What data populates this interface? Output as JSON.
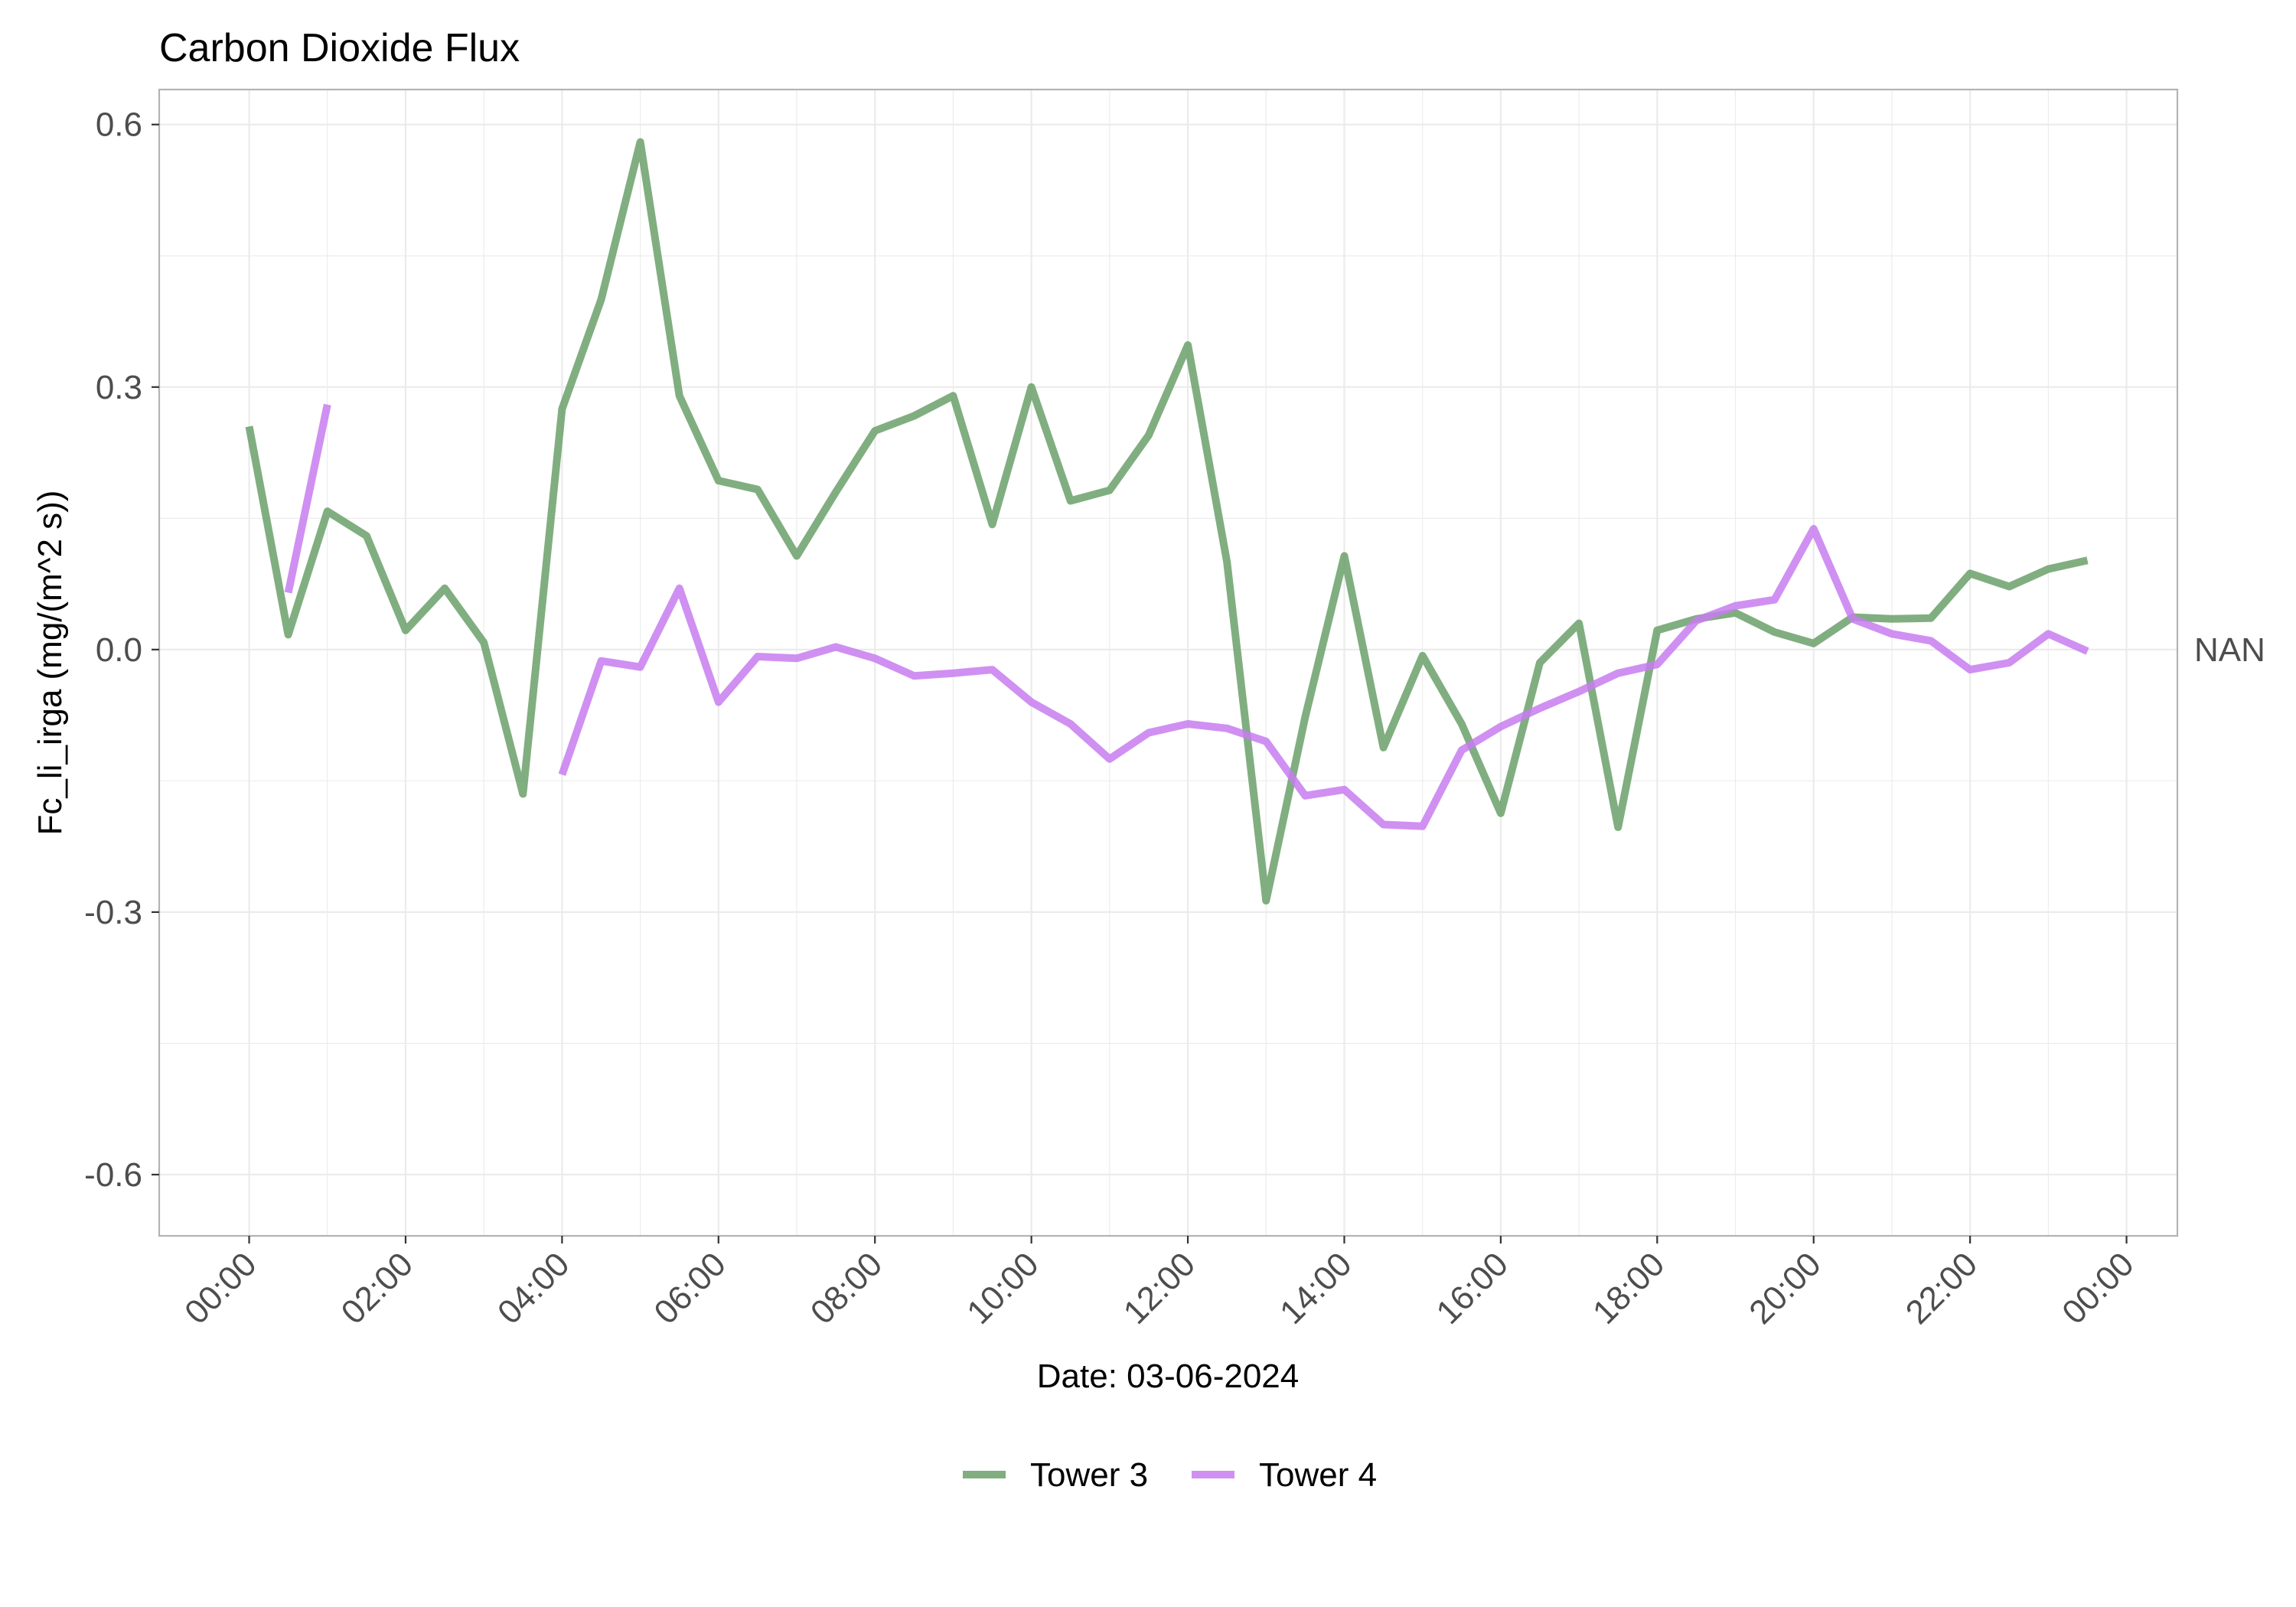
{
  "chart_data": {
    "type": "line",
    "title": "Carbon Dioxide Flux",
    "xlabel": "Date: 03-06-2024",
    "ylabel": "Fc_li_irga (mg/(m^2 s))",
    "x_tick_labels": [
      "00:00",
      "02:00",
      "04:00",
      "06:00",
      "08:00",
      "10:00",
      "12:00",
      "14:00",
      "16:00",
      "18:00",
      "20:00",
      "22:00",
      "00:00"
    ],
    "x_ticks_hours": [
      0,
      2,
      4,
      6,
      8,
      10,
      12,
      14,
      16,
      18,
      20,
      22,
      24
    ],
    "xlim": [
      -1.15,
      24.65
    ],
    "y_tick_labels": [
      "0.6",
      "0.3",
      "0.0",
      "-0.3",
      "-0.6"
    ],
    "y_ticks": [
      0.6,
      0.3,
      0.0,
      -0.3,
      -0.6
    ],
    "ylim": [
      -0.67,
      0.64
    ],
    "right_annotation": {
      "text": "NAN",
      "y": 0.0
    },
    "grid": true,
    "legend_position": "bottom",
    "series": [
      {
        "name": "Tower 3",
        "color": "#6aa06a",
        "points": [
          [
            0.0,
            0.255
          ],
          [
            0.5,
            0.017
          ],
          [
            1.0,
            0.158
          ],
          [
            1.5,
            0.13
          ],
          [
            2.0,
            0.022
          ],
          [
            2.5,
            0.07
          ],
          [
            3.0,
            0.008
          ],
          [
            3.5,
            -0.165
          ],
          [
            4.0,
            0.275
          ],
          [
            4.5,
            0.4
          ],
          [
            5.0,
            0.58
          ],
          [
            5.5,
            0.29
          ],
          [
            6.0,
            0.193
          ],
          [
            6.5,
            0.183
          ],
          [
            7.0,
            0.107
          ],
          [
            7.5,
            0.18
          ],
          [
            8.0,
            0.25
          ],
          [
            8.5,
            0.267
          ],
          [
            9.0,
            0.29
          ],
          [
            9.5,
            0.143
          ],
          [
            10.0,
            0.3
          ],
          [
            10.5,
            0.17
          ],
          [
            11.0,
            0.182
          ],
          [
            11.5,
            0.245
          ],
          [
            12.0,
            0.348
          ],
          [
            12.5,
            0.1
          ],
          [
            13.0,
            -0.287
          ],
          [
            13.5,
            -0.077
          ],
          [
            14.0,
            0.107
          ],
          [
            14.5,
            -0.112
          ],
          [
            15.0,
            -0.007
          ],
          [
            15.5,
            -0.085
          ],
          [
            16.0,
            -0.187
          ],
          [
            16.5,
            -0.015
          ],
          [
            17.0,
            0.03
          ],
          [
            17.5,
            -0.203
          ],
          [
            18.0,
            0.022
          ],
          [
            18.5,
            0.035
          ],
          [
            19.0,
            0.042
          ],
          [
            19.5,
            0.02
          ],
          [
            20.0,
            0.007
          ],
          [
            20.5,
            0.037
          ],
          [
            21.0,
            0.035
          ],
          [
            21.5,
            0.036
          ],
          [
            22.0,
            0.087
          ],
          [
            22.5,
            0.072
          ],
          [
            23.0,
            0.092
          ],
          [
            23.5,
            0.102
          ]
        ]
      },
      {
        "name": "Tower 4",
        "color": "#c77cf0",
        "points": [
          [
            0.5,
            0.065
          ],
          [
            1.0,
            0.28
          ],
          null,
          [
            4.0,
            -0.143
          ],
          [
            4.5,
            -0.013
          ],
          [
            5.0,
            -0.02
          ],
          [
            5.5,
            0.07
          ],
          [
            6.0,
            -0.06
          ],
          [
            6.5,
            -0.008
          ],
          [
            7.0,
            -0.01
          ],
          [
            7.5,
            0.003
          ],
          [
            8.0,
            -0.01
          ],
          [
            8.5,
            -0.03
          ],
          [
            9.0,
            -0.027
          ],
          [
            9.5,
            -0.023
          ],
          [
            10.0,
            -0.06
          ],
          [
            10.5,
            -0.085
          ],
          [
            11.0,
            -0.125
          ],
          [
            11.5,
            -0.095
          ],
          [
            12.0,
            -0.085
          ],
          [
            12.5,
            -0.09
          ],
          [
            13.0,
            -0.105
          ],
          [
            13.5,
            -0.167
          ],
          [
            14.0,
            -0.16
          ],
          [
            14.5,
            -0.2
          ],
          [
            15.0,
            -0.202
          ],
          [
            15.5,
            -0.115
          ],
          [
            16.0,
            -0.088
          ],
          [
            16.5,
            -0.067
          ],
          [
            17.0,
            -0.048
          ],
          [
            17.5,
            -0.027
          ],
          [
            18.0,
            -0.017
          ],
          [
            18.5,
            0.033
          ],
          [
            19.0,
            0.05
          ],
          [
            19.5,
            0.057
          ],
          [
            20.0,
            0.138
          ],
          [
            20.5,
            0.035
          ],
          [
            21.0,
            0.018
          ],
          [
            21.5,
            0.01
          ],
          [
            22.0,
            -0.023
          ],
          [
            22.5,
            -0.015
          ],
          [
            23.0,
            0.018
          ],
          [
            23.5,
            -0.002
          ]
        ]
      }
    ]
  }
}
